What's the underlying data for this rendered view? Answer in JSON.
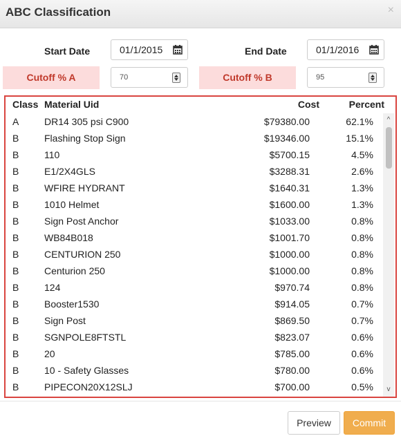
{
  "dialog": {
    "title": "ABC Classification",
    "close_symbol": "×"
  },
  "filters": {
    "start_date_label": "Start Date",
    "start_date_value": "01/1/2015",
    "end_date_label": "End Date",
    "end_date_value": "01/1/2016",
    "cutoff_a_label": "Cutoff % A",
    "cutoff_a_value": "70",
    "cutoff_b_label": "Cutoff % B",
    "cutoff_b_value": "95",
    "calendar_icon": "calendar-icon",
    "spinner_icon": "spinner-icon"
  },
  "table": {
    "headers": {
      "class": "Class",
      "uid": "Material Uid",
      "cost": "Cost",
      "percent": "Percent"
    },
    "rows": [
      {
        "class": "A",
        "uid": "DR14 305 psi C900",
        "cost": "$79380.00",
        "percent": "62.1%"
      },
      {
        "class": "B",
        "uid": "Flashing Stop Sign",
        "cost": "$19346.00",
        "percent": "15.1%"
      },
      {
        "class": "B",
        "uid": "110",
        "cost": "$5700.15",
        "percent": "4.5%"
      },
      {
        "class": "B",
        "uid": "E1/2X4GLS",
        "cost": "$3288.31",
        "percent": "2.6%"
      },
      {
        "class": "B",
        "uid": "WFIRE HYDRANT",
        "cost": "$1640.31",
        "percent": "1.3%"
      },
      {
        "class": "B",
        "uid": "1010 Helmet",
        "cost": "$1600.00",
        "percent": "1.3%"
      },
      {
        "class": "B",
        "uid": "Sign Post Anchor",
        "cost": "$1033.00",
        "percent": "0.8%"
      },
      {
        "class": "B",
        "uid": "WB84B018",
        "cost": "$1001.70",
        "percent": "0.8%"
      },
      {
        "class": "B",
        "uid": "CENTURION 250",
        "cost": "$1000.00",
        "percent": "0.8%"
      },
      {
        "class": "B",
        "uid": "Centurion 250",
        "cost": "$1000.00",
        "percent": "0.8%"
      },
      {
        "class": "B",
        "uid": "124",
        "cost": "$970.74",
        "percent": "0.8%"
      },
      {
        "class": "B",
        "uid": "Booster1530",
        "cost": "$914.05",
        "percent": "0.7%"
      },
      {
        "class": "B",
        "uid": "Sign Post",
        "cost": "$869.50",
        "percent": "0.7%"
      },
      {
        "class": "B",
        "uid": "SGNPOLE8FTSTL",
        "cost": "$823.07",
        "percent": "0.6%"
      },
      {
        "class": "B",
        "uid": "20",
        "cost": "$785.00",
        "percent": "0.6%"
      },
      {
        "class": "B",
        "uid": "10 - Safety Glasses",
        "cost": "$780.00",
        "percent": "0.6%"
      },
      {
        "class": "B",
        "uid": "PIPECON20X12SLJ",
        "cost": "$700.00",
        "percent": "0.5%"
      }
    ],
    "scroll_up_symbol": "^",
    "scroll_down_symbol": "v"
  },
  "footer": {
    "preview_label": "Preview",
    "commit_label": "Commit"
  },
  "colors": {
    "cutoff_bg": "#fcdcdc",
    "cutoff_text": "#c0392b",
    "table_border": "#d9443f",
    "commit_bg": "#f0ad4e"
  }
}
